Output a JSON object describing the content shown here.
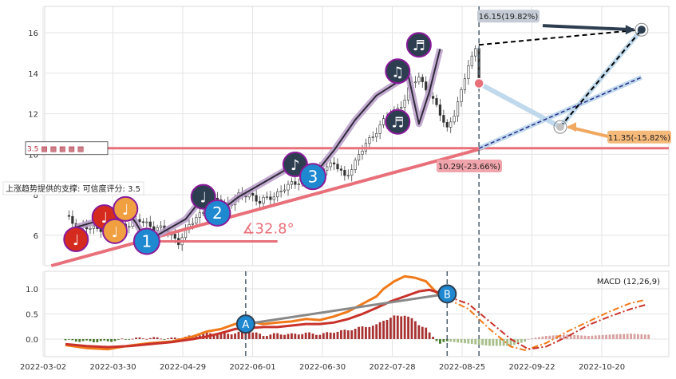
{
  "chart_data": [
    {
      "type": "candlestick",
      "panel": "price",
      "x_tick_labels": [
        "2022-03-02",
        "2022-03-30",
        "2022-04-29",
        "2022-06-01",
        "2022-06-30",
        "2022-07-28",
        "2022-08-25",
        "2022-09-22",
        "2022-10-20"
      ],
      "y_ticks": [
        6,
        8,
        10,
        12,
        14,
        16
      ],
      "ylim": [
        4.5,
        17.3
      ],
      "grid": true,
      "close_path": [
        [
          0,
          6.9
        ],
        [
          3,
          6.5
        ],
        [
          6,
          6.35
        ],
        [
          9,
          6.3
        ],
        [
          12,
          6.5
        ],
        [
          15,
          6.4
        ],
        [
          18,
          6.6
        ],
        [
          21,
          6.7
        ],
        [
          24,
          6.5
        ],
        [
          27,
          6.3
        ],
        [
          30,
          6.0
        ],
        [
          32,
          5.7
        ],
        [
          34,
          6.2
        ],
        [
          37,
          6.9
        ],
        [
          40,
          7.4
        ],
        [
          43,
          7.8
        ],
        [
          46,
          7.5
        ],
        [
          49,
          7.9
        ],
        [
          52,
          8.1
        ],
        [
          55,
          7.6
        ],
        [
          58,
          7.9
        ],
        [
          61,
          8.2
        ],
        [
          64,
          8.5
        ],
        [
          67,
          8.8
        ],
        [
          70,
          9.1
        ],
        [
          73,
          9.4
        ],
        [
          76,
          9.5
        ],
        [
          79,
          8.9
        ],
        [
          82,
          9.6
        ],
        [
          85,
          10.5
        ],
        [
          88,
          11.2
        ],
        [
          91,
          11.8
        ],
        [
          94,
          12.3
        ],
        [
          96,
          12.7
        ],
        [
          98,
          13.5
        ],
        [
          100,
          13.8
        ],
        [
          102,
          13.3
        ],
        [
          104,
          12.6
        ],
        [
          106,
          12.0
        ],
        [
          108,
          11.3
        ],
        [
          110,
          12.0
        ],
        [
          112,
          13.0
        ],
        [
          114,
          14.5
        ],
        [
          116,
          15.2
        ],
        [
          117,
          13.4
        ]
      ],
      "trend_path": [
        [
          3,
          6.4
        ],
        [
          9,
          6.7
        ],
        [
          11,
          6.9
        ],
        [
          14,
          6.2
        ],
        [
          17,
          7.3
        ],
        [
          20,
          6.6
        ],
        [
          23,
          5.7
        ],
        [
          28,
          6.2
        ],
        [
          34,
          6.8
        ],
        [
          39,
          7.9
        ],
        [
          43,
          7.1
        ],
        [
          49,
          7.9
        ],
        [
          59,
          8.9
        ],
        [
          65,
          9.5
        ],
        [
          70,
          8.9
        ],
        [
          76,
          10.2
        ],
        [
          82,
          11.7
        ],
        [
          88,
          12.9
        ],
        [
          97,
          13.9
        ],
        [
          100,
          11.5
        ],
        [
          103,
          13.1
        ],
        [
          106,
          15.2
        ]
      ],
      "pattern_labels": [
        {
          "index": 11,
          "value": 6.9,
          "label": "♩"
        },
        {
          "index": 14,
          "value": 6.2,
          "label": "♩"
        },
        {
          "index": 17,
          "value": 7.3,
          "label": "♩"
        },
        {
          "index": 3,
          "value": 5.8,
          "label": "♩"
        },
        {
          "index": 23,
          "value": 5.7,
          "label": "1"
        },
        {
          "index": 39,
          "value": 7.9,
          "label": "♩"
        },
        {
          "index": 43,
          "value": 7.1,
          "label": "2"
        },
        {
          "index": 65,
          "value": 9.5,
          "label": "♪"
        },
        {
          "index": 70,
          "value": 8.9,
          "label": "3"
        },
        {
          "index": 94,
          "value": 14.1,
          "label": "♫"
        },
        {
          "index": 94,
          "value": 11.6,
          "label": "♬"
        },
        {
          "index": 100,
          "value": 15.4,
          "label": "♬"
        }
      ],
      "support_line": {
        "value": 10.3,
        "label": "上涨趋势提供的支撑: 可信度评分: 3.5"
      },
      "support_badge": "3.5 ▩ ▩ ▩ ▩ ▩",
      "trend_angle": "∡32.8°",
      "projections": [
        {
          "label": "16.15(19.82%)",
          "value": 16.15
        },
        {
          "label": "11.35(-15.82%)",
          "value": 11.35
        },
        {
          "label": "10.29(-23.66%)",
          "value": 10.29
        }
      ],
      "current_value": 13.5
    },
    {
      "type": "macd",
      "panel": "indicator",
      "legend": "MACD (12,26,9)",
      "y_ticks": [
        0.0,
        0.5,
        1.0
      ],
      "ylim": [
        -0.35,
        1.35
      ],
      "markers": [
        {
          "label": "A",
          "index": 51,
          "value": 0.3
        },
        {
          "label": "B",
          "index": 108,
          "value": 0.9
        }
      ],
      "dif": [
        [
          0,
          -0.12
        ],
        [
          6,
          -0.18
        ],
        [
          12,
          -0.2
        ],
        [
          18,
          -0.13
        ],
        [
          24,
          -0.08
        ],
        [
          30,
          -0.05
        ],
        [
          36,
          0.05
        ],
        [
          40,
          0.15
        ],
        [
          44,
          0.2
        ],
        [
          48,
          0.3
        ],
        [
          52,
          0.35
        ],
        [
          56,
          0.3
        ],
        [
          60,
          0.33
        ],
        [
          64,
          0.35
        ],
        [
          68,
          0.4
        ],
        [
          72,
          0.38
        ],
        [
          76,
          0.45
        ],
        [
          80,
          0.55
        ],
        [
          84,
          0.7
        ],
        [
          88,
          0.85
        ],
        [
          90,
          1.0
        ],
        [
          93,
          1.15
        ],
        [
          96,
          1.25
        ],
        [
          99,
          1.22
        ],
        [
          102,
          1.15
        ],
        [
          104,
          1.0
        ],
        [
          106,
          0.85
        ],
        [
          108,
          0.8
        ]
      ],
      "dea": [
        [
          0,
          -0.1
        ],
        [
          6,
          -0.14
        ],
        [
          12,
          -0.16
        ],
        [
          18,
          -0.14
        ],
        [
          24,
          -0.1
        ],
        [
          30,
          -0.06
        ],
        [
          36,
          0.0
        ],
        [
          40,
          0.05
        ],
        [
          44,
          0.12
        ],
        [
          48,
          0.2
        ],
        [
          52,
          0.22
        ],
        [
          56,
          0.24
        ],
        [
          60,
          0.24
        ],
        [
          64,
          0.27
        ],
        [
          68,
          0.3
        ],
        [
          72,
          0.3
        ],
        [
          76,
          0.33
        ],
        [
          80,
          0.4
        ],
        [
          84,
          0.5
        ],
        [
          88,
          0.62
        ],
        [
          92,
          0.75
        ],
        [
          96,
          0.85
        ],
        [
          100,
          0.95
        ],
        [
          103,
          0.98
        ],
        [
          106,
          0.92
        ],
        [
          108,
          0.85
        ]
      ],
      "dif_projection": [
        [
          108,
          0.8
        ],
        [
          114,
          0.6
        ],
        [
          120,
          0.2
        ],
        [
          126,
          -0.15
        ],
        [
          130,
          -0.22
        ],
        [
          136,
          -0.08
        ],
        [
          142,
          0.15
        ],
        [
          148,
          0.35
        ],
        [
          154,
          0.55
        ],
        [
          160,
          0.72
        ],
        [
          164,
          0.78
        ]
      ],
      "dea_projection": [
        [
          108,
          0.85
        ],
        [
          114,
          0.7
        ],
        [
          120,
          0.35
        ],
        [
          126,
          0.0
        ],
        [
          131,
          -0.2
        ],
        [
          136,
          -0.15
        ],
        [
          142,
          0.05
        ],
        [
          148,
          0.28
        ],
        [
          154,
          0.45
        ],
        [
          160,
          0.6
        ],
        [
          164,
          0.68
        ]
      ]
    }
  ]
}
